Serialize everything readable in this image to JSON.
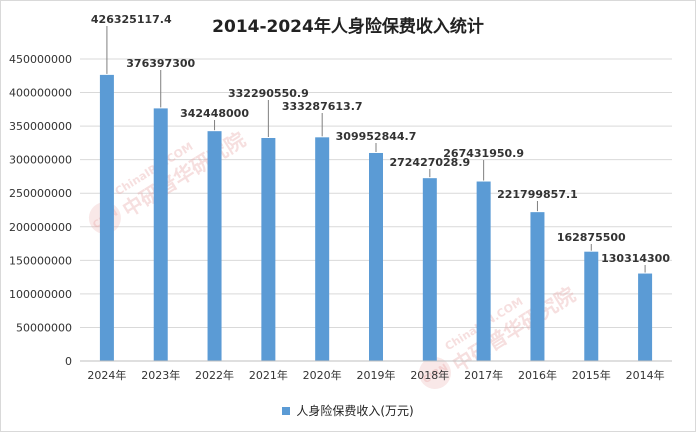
{
  "chart_data": {
    "type": "bar",
    "title": "2014-2024年人身险保费收入统计",
    "categories": [
      "2024年",
      "2023年",
      "2022年",
      "2021年",
      "2020年",
      "2019年",
      "2018年",
      "2017年",
      "2016年",
      "2015年",
      "2014年"
    ],
    "series": [
      {
        "name": "人身险保费收入(万元)",
        "values": [
          426325117.4,
          376397300,
          342448000,
          332290550.9,
          333287613.7,
          309952844.7,
          272427028.9,
          267431950.9,
          221799857.1,
          162875500,
          130314300
        ],
        "value_labels": [
          "426325117.4",
          "376397300",
          "342448000",
          "332290550.9",
          "333287613.7",
          "309952844.7",
          "272427028.9",
          "267431950.9",
          "221799857.1",
          "162875500",
          "130314300"
        ]
      }
    ],
    "ylim": [
      0,
      450000000
    ],
    "yticks": [
      0,
      50000000,
      100000000,
      150000000,
      200000000,
      250000000,
      300000000,
      350000000,
      400000000,
      450000000
    ],
    "ytick_labels": [
      "0",
      "50000000",
      "100000000",
      "150000000",
      "200000000",
      "250000000",
      "300000000",
      "350000000",
      "400000000",
      "450000000"
    ],
    "grid": true,
    "legend_position": "bottom",
    "bar_color": "#5b9bd5",
    "grid_color": "#d9d9d9"
  },
  "watermark": {
    "url_text": "ChinaIRN.COM",
    "cn_text": "中研普华研究院",
    "badge": "CIRN"
  }
}
